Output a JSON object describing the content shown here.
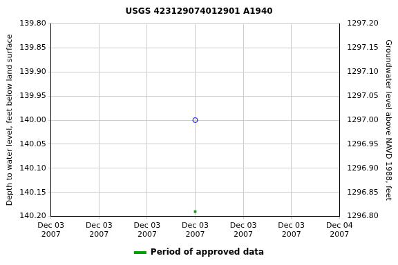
{
  "chart_data": {
    "type": "scatter",
    "title": "USGS 423129074012901 A1940",
    "y_label": "Depth to water level, feet below land surface",
    "y2_label": "Groundwater level above NAVD 1988, feet",
    "categories": [
      "Dec 03 2007",
      "Dec 03 2007",
      "Dec 03 2007",
      "Dec 03 2007",
      "Dec 03 2007",
      "Dec 03 2007",
      "Dec 04 2007"
    ],
    "series": [
      {
        "color": "#0000ff",
        "marker": "circle",
        "values": [
          null,
          null,
          null,
          140.0,
          null,
          null,
          null
        ]
      },
      {
        "name": "Period of approved data",
        "color": "#00a000",
        "marker": "square",
        "values": [
          null,
          null,
          null,
          140.19,
          null,
          null,
          null
        ]
      }
    ],
    "ylim": [
      139.8,
      140.2
    ],
    "yticks": [
      {
        "value": 139.8,
        "label": "139.80"
      },
      139.85,
      {
        "value": 139.9,
        "label": "139.90"
      },
      139.95,
      {
        "value": 140,
        "label": "140.00"
      },
      140.05,
      {
        "value": 140.1,
        "label": "140.10"
      },
      140.15,
      {
        "value": 140.2,
        "label": "140.20"
      }
    ],
    "y2lim": [
      1296.8,
      1297.2
    ],
    "y2ticks": [
      {
        "value": 1296.8,
        "label": "1296.80"
      },
      1296.85,
      {
        "value": 1296.9,
        "label": "1296.90"
      },
      1296.95,
      {
        "value": 1297,
        "label": "1297.00"
      },
      1297.05,
      {
        "value": 1297.1,
        "label": "1297.10"
      },
      1297.15,
      {
        "value": 1297.2,
        "label": "1297.20"
      }
    ],
    "grid": true,
    "legend": "bottom"
  }
}
